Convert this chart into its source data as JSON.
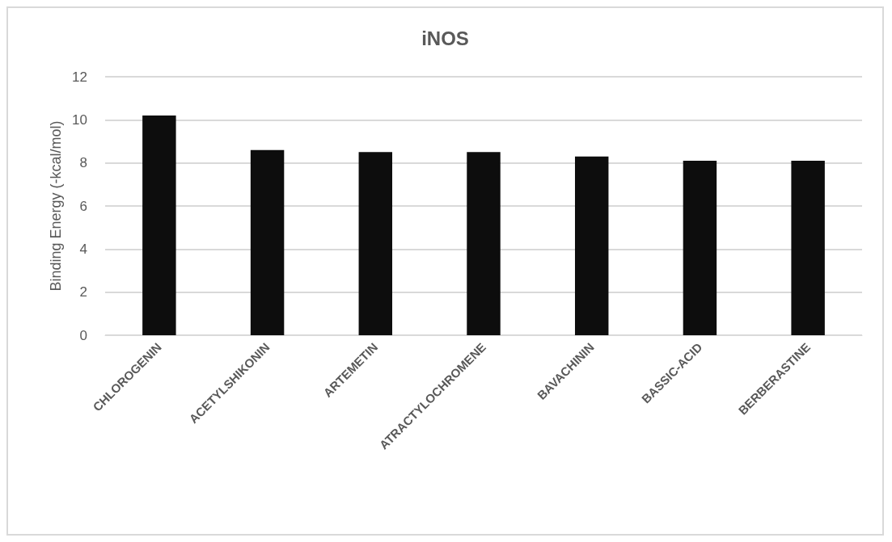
{
  "chart_data": {
    "type": "bar",
    "title": "iNOS",
    "ylabel": "Binding Energy (-kcal/mol)",
    "categories": [
      "CHLOROGENIN",
      "ACETYLSHIKONIN",
      "ARTEMETIN",
      "ATRACTYLOCHROMENE",
      "BAVACHININ",
      "BASSIC-ACID",
      "BERBERASTINE"
    ],
    "values": [
      10.2,
      8.6,
      8.5,
      8.5,
      8.3,
      8.1,
      8.1
    ],
    "color": "#0d0d0d",
    "ylim": [
      0,
      12
    ],
    "yticks": [
      0,
      2,
      4,
      6,
      8,
      10,
      12
    ],
    "grid": "y"
  }
}
